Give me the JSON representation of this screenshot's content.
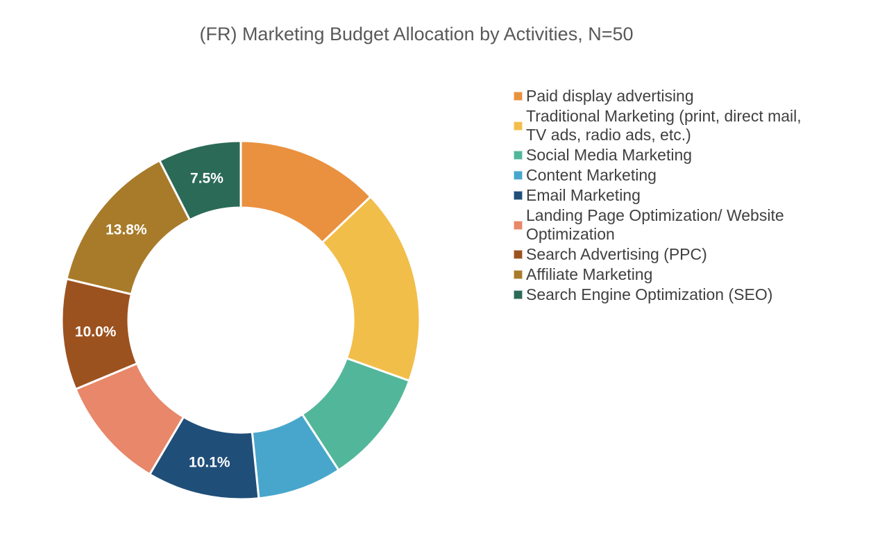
{
  "chart_data": {
    "type": "pie",
    "title": "(FR) Marketing Budget Allocation by Activities, N=50",
    "legend_position": "right",
    "slices": [
      {
        "name": "Paid display advertising",
        "value": 12.9,
        "color": "#E9913F",
        "label": ""
      },
      {
        "name": "Traditional Marketing (print, direct mail, TV ads, radio ads, etc.)",
        "value": 17.6,
        "color": "#F2BE4A",
        "label": ""
      },
      {
        "name": "Social Media Marketing",
        "value": 10.3,
        "color": "#52B79A",
        "label": ""
      },
      {
        "name": "Content Marketing",
        "value": 7.6,
        "color": "#48A6CC",
        "label": ""
      },
      {
        "name": "Email Marketing",
        "value": 10.1,
        "color": "#1F4E79",
        "label": "10.1%"
      },
      {
        "name": "Landing Page Optimization/ Website Optimization",
        "value": 10.2,
        "color": "#E8876A",
        "label": ""
      },
      {
        "name": "Search Advertising (PPC)",
        "value": 10.0,
        "color": "#9C521F",
        "label": "10.0%"
      },
      {
        "name": "Affiliate Marketing",
        "value": 13.8,
        "color": "#A87B2A",
        "label": "13.8%"
      },
      {
        "name": "Search Engine Optimization (SEO)",
        "value": 7.5,
        "color": "#2B6A57",
        "label": "7.5%"
      }
    ]
  },
  "legend": {
    "items": [
      {
        "lines": [
          "Paid display advertising"
        ]
      },
      {
        "lines": [
          "Traditional Marketing (print, direct mail,",
          "TV ads, radio ads, etc.)"
        ]
      },
      {
        "lines": [
          "Social Media Marketing"
        ]
      },
      {
        "lines": [
          "Content Marketing"
        ]
      },
      {
        "lines": [
          "Email Marketing"
        ]
      },
      {
        "lines": [
          "Landing Page Optimization/ Website",
          "Optimization"
        ]
      },
      {
        "lines": [
          "Search Advertising (PPC)"
        ]
      },
      {
        "lines": [
          "Affiliate Marketing"
        ]
      },
      {
        "lines": [
          "Search Engine Optimization (SEO)"
        ]
      }
    ]
  }
}
